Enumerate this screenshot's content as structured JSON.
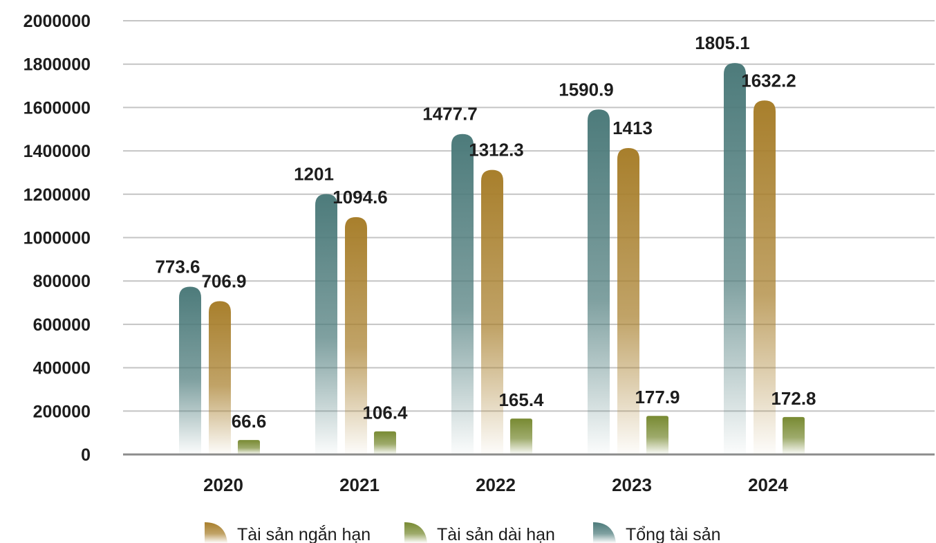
{
  "chart_data": {
    "type": "bar",
    "categories": [
      "2020",
      "2021",
      "2022",
      "2023",
      "2024"
    ],
    "series": [
      {
        "name": "Tổng tài sản",
        "values": [
          773.6,
          1201,
          1477.7,
          1590.9,
          1805.1
        ],
        "color": "#4d7b7b"
      },
      {
        "name": "Tài sản ngắn hạn",
        "values": [
          706.9,
          1094.6,
          1312.3,
          1413,
          1632.2
        ],
        "color": "#a87f2c"
      },
      {
        "name": "Tài sản dài hạn",
        "values": [
          66.6,
          106.4,
          165.4,
          177.9,
          172.8
        ],
        "color": "#788a32"
      }
    ],
    "y_ticks": [
      "0",
      "200000",
      "400000",
      "600000",
      "800000",
      "1000000",
      "1200000",
      "1400000",
      "1600000",
      "1800000",
      "2000000"
    ],
    "ylim": [
      0,
      2000
    ],
    "grid": true,
    "legend": {
      "placement": "bottom",
      "order": [
        "Tài sản ngắn hạn",
        "Tài sản dài hạn",
        "Tổng tài sản"
      ]
    },
    "title": "",
    "xlabel": "",
    "ylabel": ""
  }
}
